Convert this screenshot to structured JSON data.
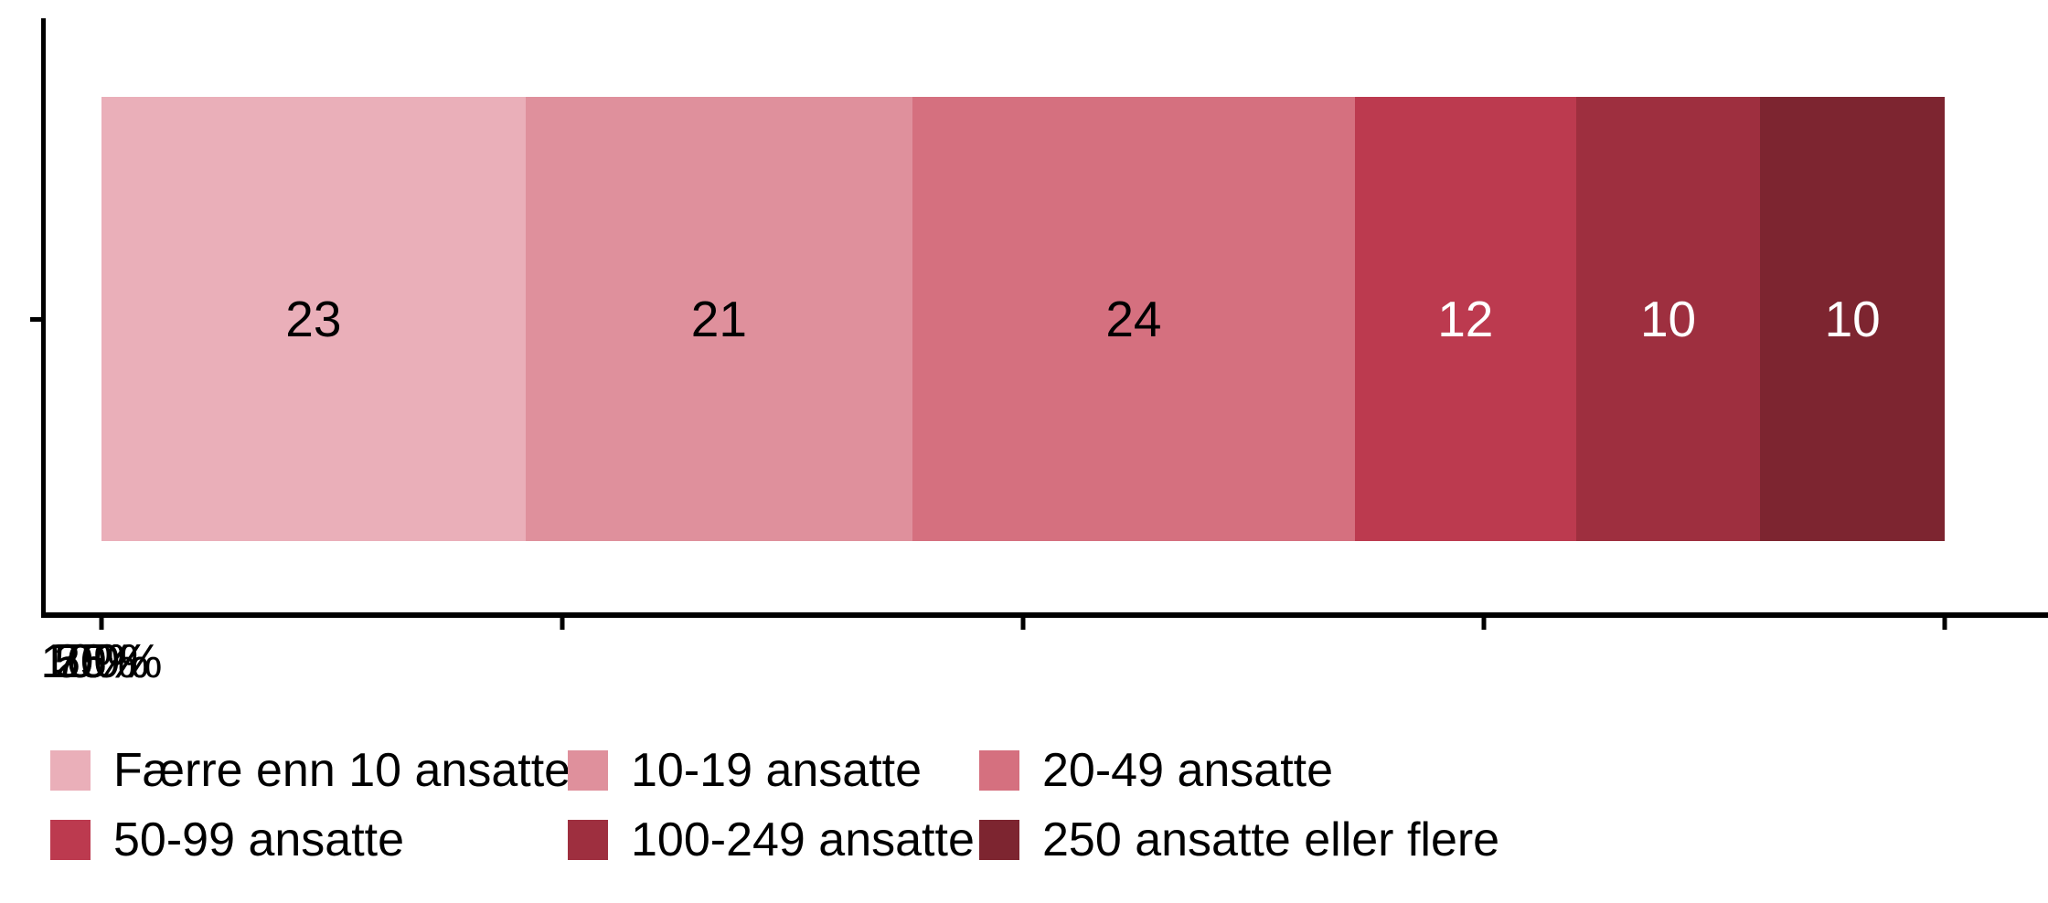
{
  "chart_data": {
    "type": "bar",
    "variant": "horizontal-stacked-percent",
    "title": "",
    "xlabel": "",
    "ylabel": "",
    "xlim": [
      0,
      100
    ],
    "x_ticks": [
      "0%",
      "25%",
      "50%",
      "75%",
      "100%"
    ],
    "x_tick_positions": [
      0,
      25,
      50,
      75,
      100
    ],
    "grid": "off",
    "legend_position": "bottom",
    "axis_color": "#000000",
    "background_color": "#ffffff",
    "series": [
      {
        "name": "Færre enn 10 ansatte",
        "value": 23,
        "color": "#EAAFB9",
        "label": "23",
        "label_color": "#000000"
      },
      {
        "name": "10-19 ansatte",
        "value": 21,
        "color": "#DF909C",
        "label": "21",
        "label_color": "#000000"
      },
      {
        "name": "20-49 ansatte",
        "value": 24,
        "color": "#D5707F",
        "label": "24",
        "label_color": "#000000"
      },
      {
        "name": "50-99 ansatte",
        "value": 12,
        "color": "#BC3A4F",
        "label": "12",
        "label_color": "#FFFFFF"
      },
      {
        "name": "100-249 ansatte",
        "value": 10,
        "color": "#9E2F3F",
        "label": "10",
        "label_color": "#FFFFFF"
      },
      {
        "name": "250 ansatte eller flere",
        "value": 10,
        "color": "#7D2530",
        "label": "10",
        "label_color": "#FFFFFF"
      }
    ]
  }
}
